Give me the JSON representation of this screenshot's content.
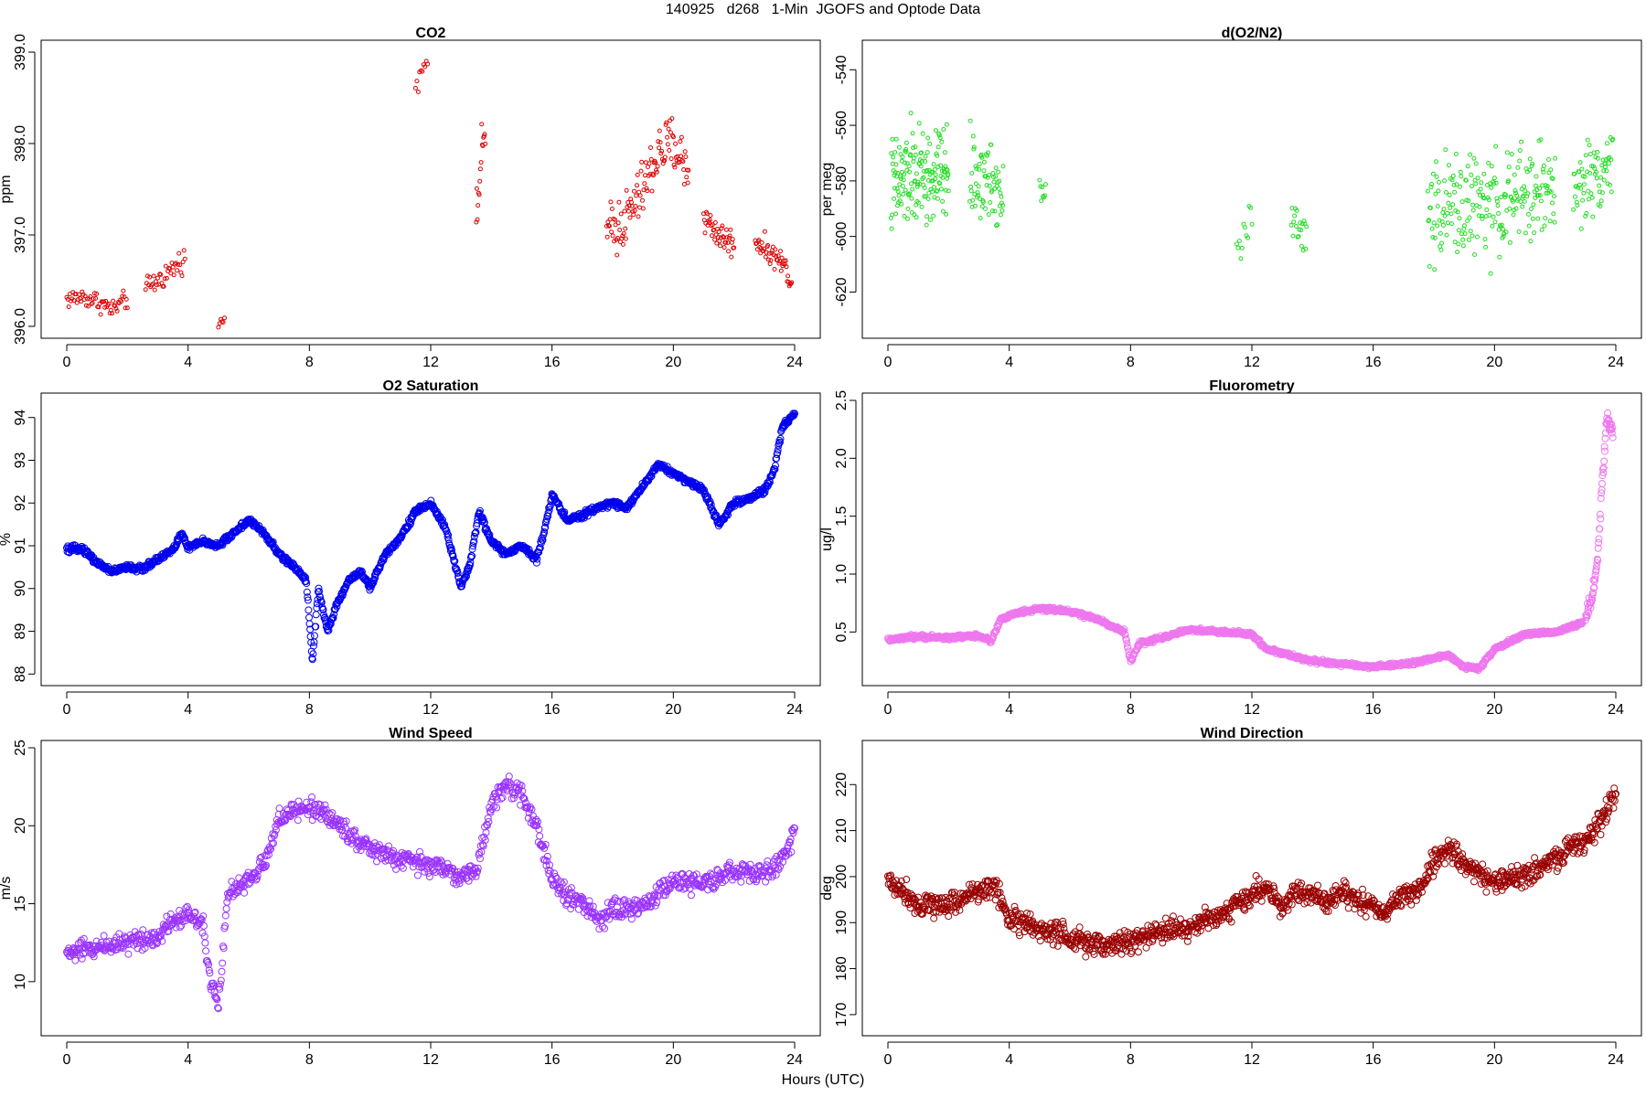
{
  "figure": {
    "title": "140925   d268   1-Min  JGOFS and Optode Data",
    "xlabel": "Hours (UTC)"
  },
  "chart_data": [
    {
      "id": "co2",
      "type": "scatter",
      "title": "CO2",
      "ylabel": "ppm",
      "color": "#dd0000",
      "marker_radius": 2,
      "xlim": [
        0,
        24
      ],
      "ylim": [
        395.95,
        399.05
      ],
      "xticks": [
        0,
        4,
        8,
        12,
        16,
        20,
        24
      ],
      "yticks": [
        396.0,
        397.0,
        398.0,
        399.0
      ],
      "ytick_labels": [
        "396.0",
        "397.0",
        "398.0",
        "399.0"
      ],
      "segments": [
        {
          "x": [
            0.0,
            0.5,
            1.0,
            1.5,
            2.0
          ],
          "y": [
            396.3,
            396.32,
            396.28,
            396.18,
            396.3
          ],
          "noise": 0.12,
          "n": 60
        },
        {
          "x": [
            2.6,
            3.0,
            3.4,
            3.9
          ],
          "y": [
            396.4,
            396.5,
            396.6,
            396.75
          ],
          "noise": 0.14,
          "n": 40
        },
        {
          "x": [
            5.0,
            5.2
          ],
          "y": [
            396.0,
            396.1
          ],
          "noise": 0.06,
          "n": 6
        },
        {
          "x": [
            11.5,
            11.7,
            11.9
          ],
          "y": [
            398.6,
            398.85,
            398.95
          ],
          "noise": 0.12,
          "n": 10
        },
        {
          "x": [
            13.5,
            13.6,
            13.8
          ],
          "y": [
            397.0,
            397.6,
            398.2
          ],
          "noise": 0.35,
          "n": 16
        },
        {
          "x": [
            17.8,
            18.5,
            19.0,
            19.5,
            20.0,
            20.5
          ],
          "y": [
            397.0,
            397.2,
            397.5,
            397.9,
            398.0,
            397.7
          ],
          "noise": 0.35,
          "n": 120
        },
        {
          "x": [
            21.0,
            21.5,
            22.0
          ],
          "y": [
            397.2,
            397.0,
            396.9
          ],
          "noise": 0.18,
          "n": 45
        },
        {
          "x": [
            22.7,
            23.2,
            23.6,
            23.9
          ],
          "y": [
            396.95,
            396.8,
            396.7,
            396.5
          ],
          "noise": 0.14,
          "n": 50
        }
      ]
    },
    {
      "id": "do2n2",
      "type": "scatter",
      "title": "d(O2/N2)",
      "ylabel": "per meg",
      "color": "#22dd22",
      "marker_radius": 2,
      "xlim": [
        0,
        24
      ],
      "ylim": [
        -634,
        -532
      ],
      "xticks": [
        0,
        4,
        8,
        12,
        16,
        20,
        24
      ],
      "yticks": [
        -620,
        -600,
        -580,
        -560,
        -540
      ],
      "ytick_labels": [
        "-620",
        "-600",
        "-580",
        "-560",
        "-540"
      ],
      "segments": [
        {
          "x": [
            0.1,
            0.8,
            1.5,
            2.0
          ],
          "y": [
            -583,
            -578,
            -580,
            -575
          ],
          "noise": 20,
          "n": 160
        },
        {
          "x": [
            2.7,
            3.2,
            3.8
          ],
          "y": [
            -578,
            -580,
            -583
          ],
          "noise": 16,
          "n": 70
        },
        {
          "x": [
            5.0,
            5.2
          ],
          "y": [
            -583,
            -582
          ],
          "noise": 5,
          "n": 8
        },
        {
          "x": [
            11.5,
            11.8,
            12.0
          ],
          "y": [
            -604,
            -598,
            -592
          ],
          "noise": 8,
          "n": 12
        },
        {
          "x": [
            13.3,
            13.6,
            13.8
          ],
          "y": [
            -596,
            -598,
            -600
          ],
          "noise": 11,
          "n": 20
        },
        {
          "x": [
            17.8,
            19.0,
            20.0,
            21.0,
            22.0
          ],
          "y": [
            -592,
            -588,
            -590,
            -585,
            -582
          ],
          "noise": 20,
          "n": 230
        },
        {
          "x": [
            22.6,
            23.2,
            23.9
          ],
          "y": [
            -585,
            -578,
            -573
          ],
          "noise": 15,
          "n": 70
        }
      ]
    },
    {
      "id": "o2sat",
      "type": "scatter",
      "title": "O2 Saturation",
      "ylabel": "%",
      "color": "#0000ee",
      "marker_radius": 3.5,
      "xlim": [
        0,
        24
      ],
      "ylim": [
        87.9,
        94.4
      ],
      "xticks": [
        0,
        4,
        8,
        12,
        16,
        20,
        24
      ],
      "yticks": [
        88,
        89,
        90,
        91,
        92,
        93,
        94
      ],
      "ytick_labels": [
        "88",
        "89",
        "90",
        "91",
        "92",
        "93",
        "94"
      ],
      "segments": [
        {
          "x": [
            0,
            0.5,
            1.0,
            1.5,
            2.0,
            2.5,
            3.0,
            3.5,
            3.8,
            4.0,
            4.5,
            5.0,
            5.5,
            6.0,
            6.5,
            7.0,
            7.5,
            7.9,
            8.1,
            8.3,
            8.6,
            8.9,
            9.3,
            9.7,
            10.0,
            10.5,
            11.0,
            11.5,
            12.0,
            12.5,
            13.0,
            13.3,
            13.6,
            14.0,
            14.5,
            15.0,
            15.5,
            15.8,
            16.0,
            16.5,
            17.0,
            17.5,
            18.0,
            18.5,
            19.0,
            19.5,
            20.0,
            20.5,
            21.0,
            21.5,
            22.0,
            22.5,
            23.0,
            23.3,
            23.6,
            24.0
          ],
          "y": [
            90.9,
            90.95,
            90.6,
            90.4,
            90.5,
            90.45,
            90.7,
            90.9,
            91.3,
            90.95,
            91.1,
            91.0,
            91.3,
            91.6,
            91.3,
            90.8,
            90.5,
            90.2,
            88.3,
            90.0,
            89.0,
            89.6,
            90.2,
            90.4,
            90.0,
            90.8,
            91.2,
            91.8,
            92.0,
            91.4,
            90.0,
            90.6,
            91.8,
            91.1,
            90.8,
            91.0,
            90.7,
            91.5,
            92.2,
            91.6,
            91.7,
            91.9,
            92.0,
            91.9,
            92.4,
            92.9,
            92.7,
            92.5,
            92.3,
            91.5,
            92.0,
            92.1,
            92.3,
            92.7,
            93.8,
            94.1
          ],
          "noise": 0.08,
          "n": 1440
        }
      ]
    },
    {
      "id": "fluorometry",
      "type": "scatter",
      "title": "Fluorometry",
      "ylabel": "ug/l",
      "color": "#ee77ee",
      "marker_radius": 3.5,
      "xlim": [
        0,
        24
      ],
      "ylim": [
        0.1,
        2.5
      ],
      "xticks": [
        0,
        4,
        8,
        12,
        16,
        20,
        24
      ],
      "yticks": [
        0.5,
        1.0,
        1.5,
        2.0,
        2.5
      ],
      "ytick_labels": [
        "0.5",
        "1.0",
        "1.5",
        "2.0",
        "2.5"
      ],
      "segments": [
        {
          "x": [
            0,
            1.0,
            2.0,
            3.0,
            3.4,
            3.7,
            4.2,
            5.0,
            6.0,
            7.0,
            7.8,
            8.0,
            8.3,
            9.0,
            10.0,
            11.0,
            12.0,
            12.5,
            13.0,
            13.5,
            14.0,
            15.0,
            16.0,
            17.0,
            18.0,
            18.5,
            19.0,
            19.5,
            20.0,
            21.0,
            22.0,
            22.9
          ],
          "y": [
            0.43,
            0.46,
            0.45,
            0.47,
            0.42,
            0.6,
            0.66,
            0.7,
            0.68,
            0.6,
            0.5,
            0.25,
            0.4,
            0.45,
            0.52,
            0.5,
            0.48,
            0.35,
            0.32,
            0.28,
            0.25,
            0.22,
            0.2,
            0.22,
            0.27,
            0.3,
            0.2,
            0.18,
            0.35,
            0.48,
            0.5,
            0.58
          ],
          "noise": 0.02,
          "n": 1300
        },
        {
          "x": [
            23.0,
            23.2,
            23.4,
            23.55,
            23.7,
            23.9
          ],
          "y": [
            0.6,
            0.8,
            1.1,
            1.8,
            2.35,
            2.2
          ],
          "noise": 0.08,
          "n": 70
        }
      ]
    },
    {
      "id": "windspeed",
      "type": "scatter",
      "title": "Wind Speed",
      "ylabel": "m/s",
      "color": "#9933ff",
      "marker_radius": 3.5,
      "xlim": [
        0,
        24
      ],
      "ylim": [
        7,
        25
      ],
      "xticks": [
        0,
        4,
        8,
        12,
        16,
        20,
        24
      ],
      "yticks": [
        10,
        15,
        20,
        25
      ],
      "ytick_labels": [
        "10",
        "15",
        "20",
        "25"
      ],
      "segments": [
        {
          "x": [
            0,
            1.0,
            2.0,
            3.0,
            3.5,
            4.0,
            4.5,
            4.7,
            5.0,
            5.3,
            6.0,
            6.5,
            7.0,
            8.0,
            8.5,
            9.0,
            10.0,
            11.0,
            12.0,
            13.0,
            13.5,
            14.0,
            14.5,
            15.0,
            15.5,
            16.0,
            16.5,
            17.0,
            17.5,
            18.0,
            19.0,
            20.0,
            21.0,
            22.0,
            23.0,
            23.5,
            24.0
          ],
          "y": [
            11.8,
            12.2,
            12.6,
            12.9,
            14.0,
            14.3,
            13.8,
            10.5,
            8.5,
            15.5,
            16.5,
            17.5,
            20.5,
            21.2,
            20.8,
            20.0,
            18.5,
            17.8,
            17.5,
            16.8,
            17.0,
            21.5,
            22.5,
            22.0,
            20.0,
            16.5,
            15.5,
            15.0,
            14.0,
            14.5,
            14.8,
            16.5,
            16.3,
            17.0,
            17.0,
            17.5,
            19.5
          ],
          "noise": 0.7,
          "n": 1100
        }
      ]
    },
    {
      "id": "winddir",
      "type": "scatter",
      "title": "Wind Direction",
      "ylabel": "deg",
      "color": "#990000",
      "marker_radius": 3.5,
      "xlim": [
        0,
        24
      ],
      "ylim": [
        167,
        228
      ],
      "xticks": [
        0,
        4,
        8,
        12,
        16,
        20,
        24
      ],
      "yticks": [
        170,
        180,
        190,
        200,
        210,
        220
      ],
      "ytick_labels": [
        "170",
        "180",
        "190",
        "200",
        "210",
        "220"
      ],
      "segments": [
        {
          "x": [
            0,
            0.5,
            1.0,
            2.0,
            3.0,
            3.5,
            4.0,
            4.5,
            5.0,
            5.5,
            6.0,
            7.0,
            8.0,
            9.0,
            10.0,
            11.0,
            12.0,
            12.5,
            13.0,
            13.5,
            14.0,
            14.5,
            15.0,
            16.0,
            16.5,
            17.0,
            17.5,
            18.0,
            18.5,
            19.0,
            19.5,
            20.0,
            20.5,
            21.0,
            21.5,
            22.0,
            22.5,
            23.0,
            23.5,
            24.0
          ],
          "y": [
            199,
            197,
            194,
            194,
            197,
            198,
            191,
            190,
            188,
            188,
            186,
            185,
            186,
            188,
            189,
            192,
            196,
            198,
            193,
            197,
            196,
            194,
            197,
            193,
            193,
            196,
            197,
            203,
            206,
            203,
            200,
            199,
            199,
            200,
            202,
            204,
            206,
            208,
            212,
            218
          ],
          "noise": 2.8,
          "n": 1300
        }
      ]
    }
  ]
}
